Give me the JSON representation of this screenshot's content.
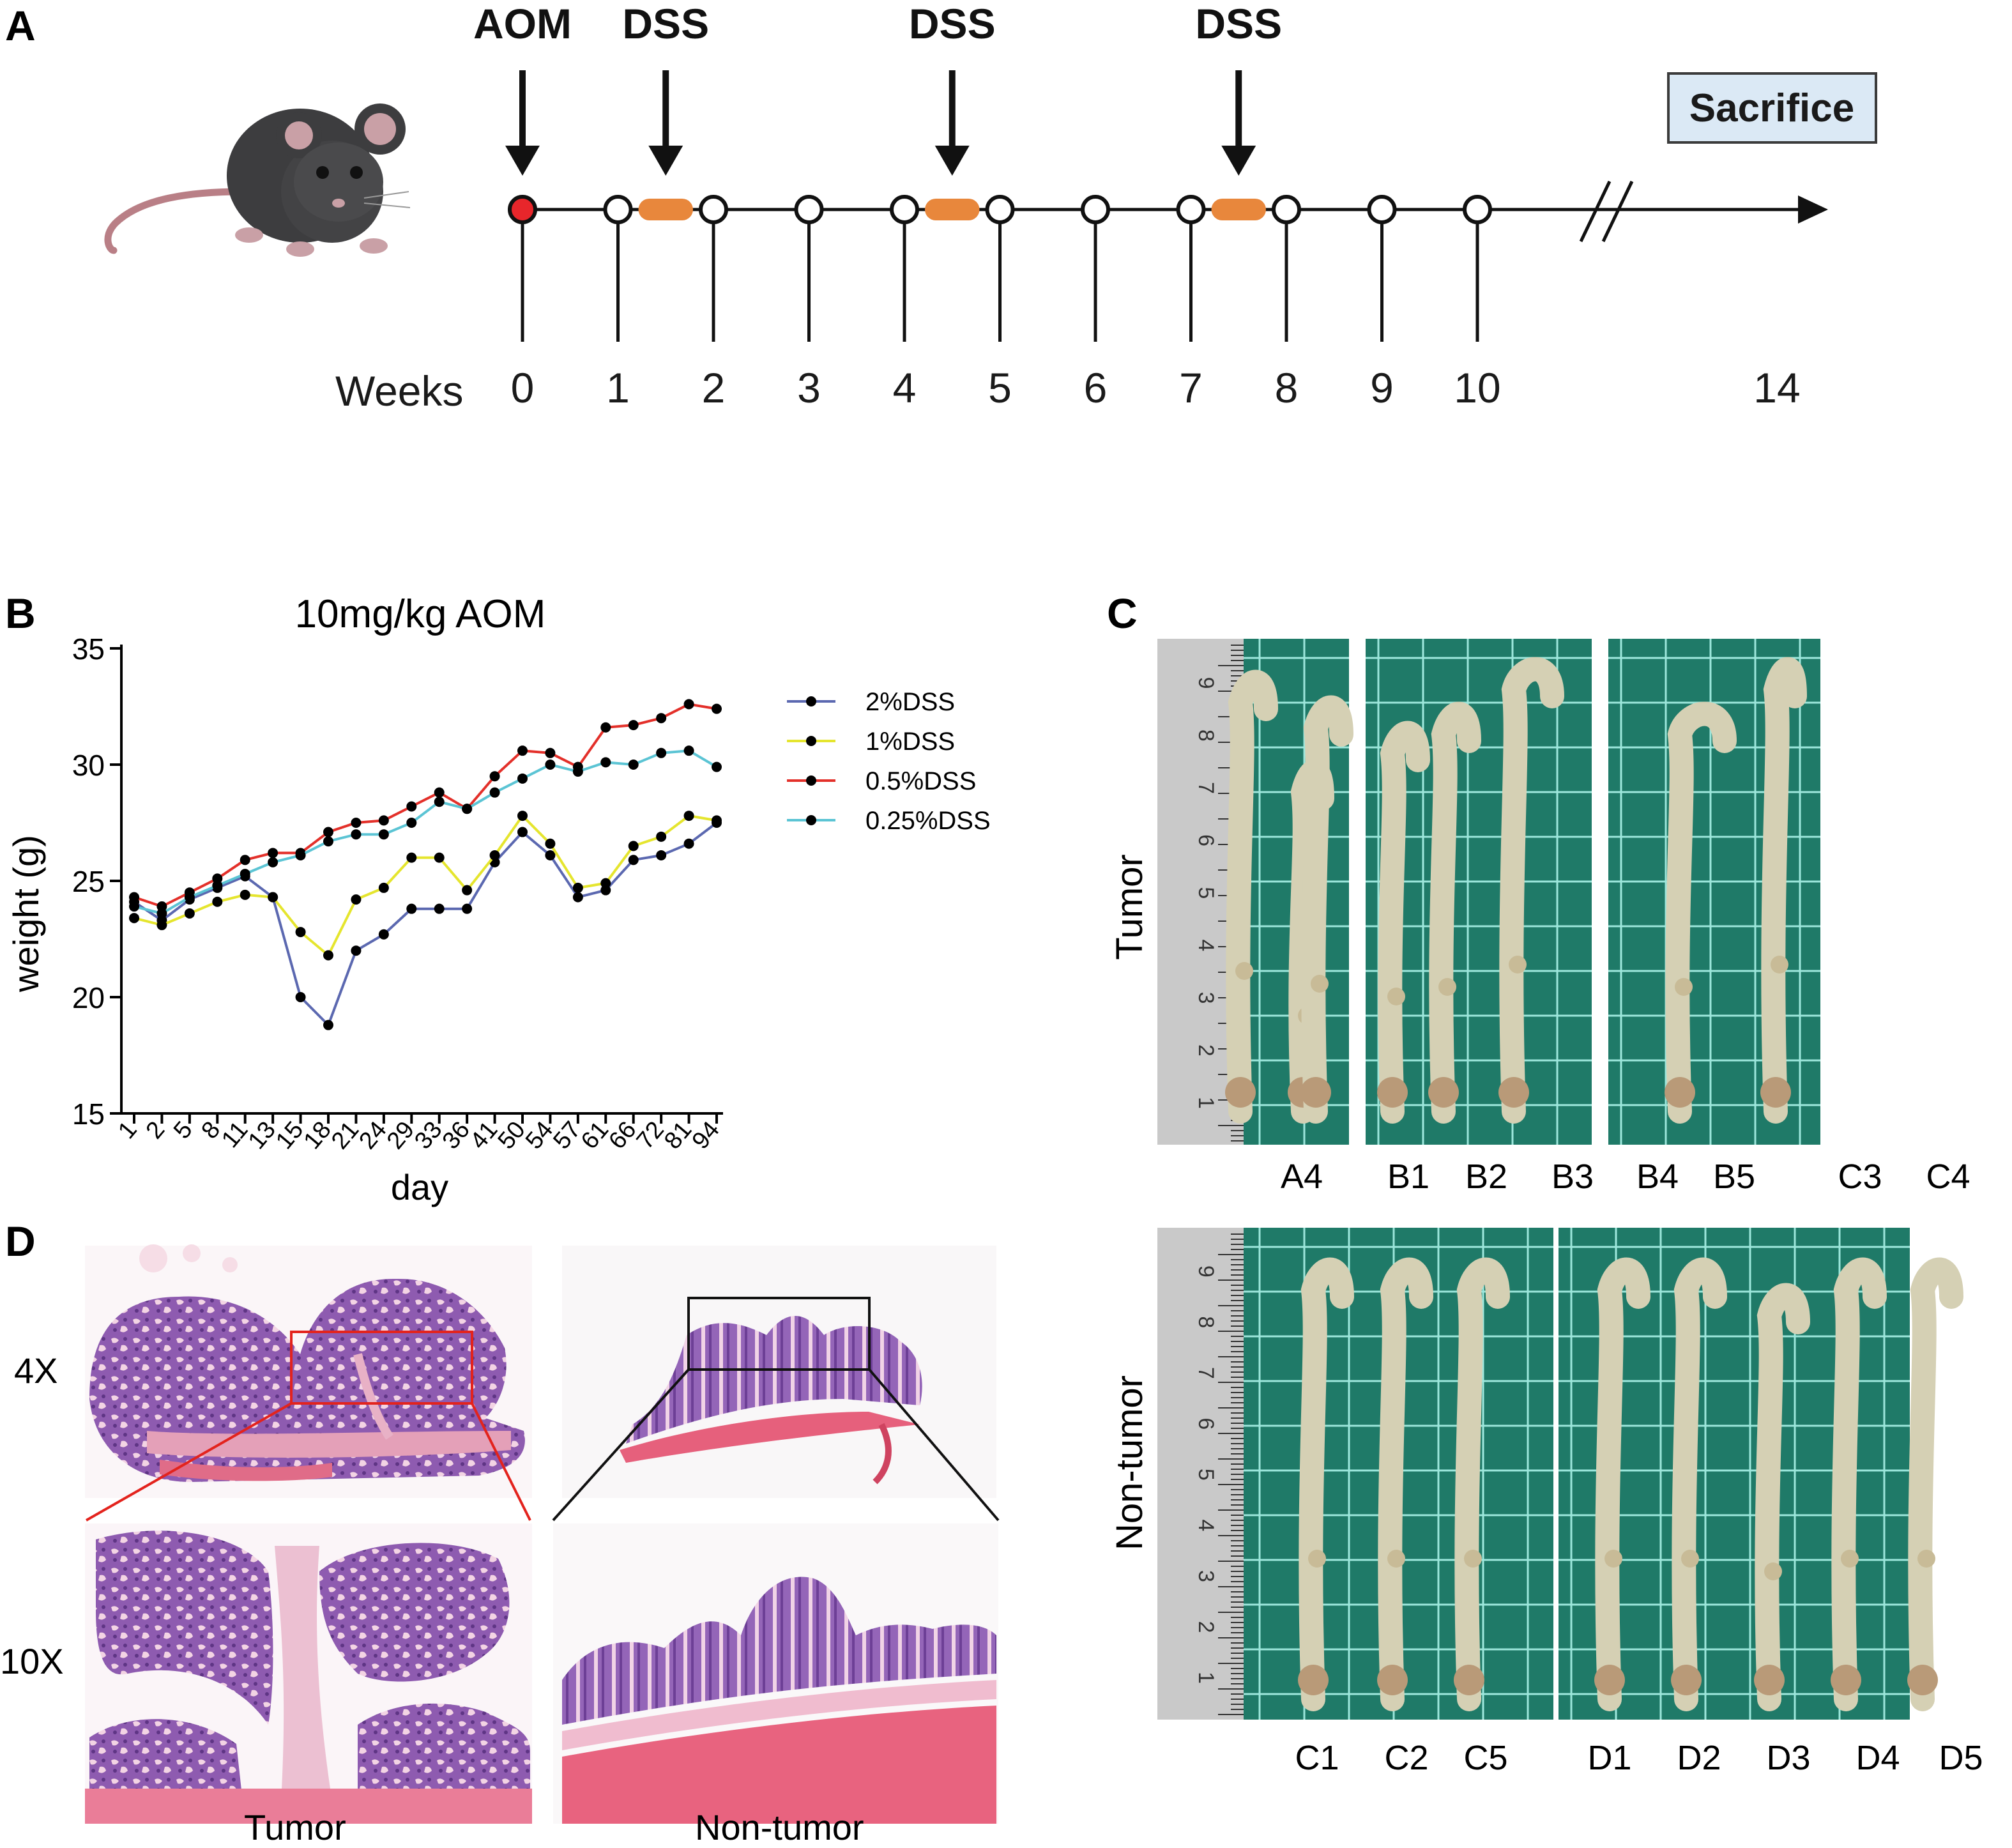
{
  "figure": {
    "panel_labels": {
      "a": "A",
      "b": "B",
      "c": "C",
      "d": "D"
    }
  },
  "panel_a": {
    "injections": [
      {
        "label": "AOM",
        "week": 0
      },
      {
        "label": "DSS",
        "week": 1.5
      },
      {
        "label": "DSS",
        "week": 4.5
      },
      {
        "label": "DSS",
        "week": 7.5
      }
    ],
    "dss_bars": [
      {
        "start": 1,
        "end": 2
      },
      {
        "start": 4,
        "end": 5
      },
      {
        "start": 7,
        "end": 8
      }
    ],
    "weeks_label": "Weeks",
    "week_ticks": [
      "0",
      "1",
      "2",
      "3",
      "4",
      "5",
      "6",
      "7",
      "8",
      "9",
      "10",
      "14"
    ],
    "sacrifice_label": "Sacrifice",
    "colors": {
      "aom_dot": "#e8262b",
      "dss_bar": "#e8873c",
      "sacrifice_bg": "#dbe9f5",
      "sacrifice_border": "#3b3b3b",
      "mouse": "#3d3d3f",
      "mouse_ear": "#c9a0a6"
    }
  },
  "chart_data": {
    "type": "line",
    "title": "10mg/kg AOM",
    "xlabel": "day",
    "ylabel": "weight (g)",
    "ylim": [
      15,
      35
    ],
    "yticks": [
      15,
      20,
      25,
      30,
      35
    ],
    "categories": [
      "1",
      "2",
      "5",
      "8",
      "11",
      "13",
      "15",
      "18",
      "21",
      "24",
      "29",
      "33",
      "36",
      "41",
      "50",
      "54",
      "57",
      "61",
      "66",
      "72",
      "81",
      "94"
    ],
    "legend_position": "top-right",
    "series": [
      {
        "name": "2%DSS",
        "color": "#5b68b0",
        "values": [
          24.1,
          23.3,
          24.2,
          24.7,
          25.2,
          24.3,
          20.0,
          18.8,
          22.0,
          22.7,
          23.8,
          23.8,
          23.8,
          25.8,
          27.1,
          26.1,
          24.3,
          24.6,
          25.9,
          26.1,
          26.6,
          27.5
        ]
      },
      {
        "name": "1%DSS",
        "color": "#e5e52e",
        "values": [
          23.4,
          23.1,
          23.6,
          24.1,
          24.4,
          24.3,
          22.8,
          21.8,
          24.2,
          24.7,
          26.0,
          26.0,
          24.6,
          26.1,
          27.8,
          26.6,
          24.7,
          24.9,
          26.5,
          26.9,
          27.8,
          27.6
        ]
      },
      {
        "name": "0.5%DSS",
        "color": "#e3302a",
        "values": [
          24.3,
          23.9,
          24.5,
          25.1,
          25.9,
          26.2,
          26.2,
          27.1,
          27.5,
          27.6,
          28.2,
          28.8,
          28.1,
          29.5,
          30.6,
          30.5,
          29.9,
          31.6,
          31.7,
          32.0,
          32.6,
          32.4
        ]
      },
      {
        "name": "0.25%DSS",
        "color": "#5bc4d4",
        "values": [
          23.9,
          23.6,
          24.3,
          24.8,
          25.3,
          25.8,
          26.1,
          26.7,
          27.0,
          27.0,
          27.5,
          28.4,
          28.1,
          28.8,
          29.4,
          30.0,
          29.7,
          30.1,
          30.0,
          30.5,
          30.6,
          29.9
        ]
      }
    ]
  },
  "panel_c": {
    "tumor_label": "Tumor",
    "nontumor_label": "Non-tumor",
    "tumor_samples": [
      "A4",
      "B1",
      "B2",
      "B3",
      "B4",
      "B5",
      "C3",
      "C4"
    ],
    "nontumor_samples": [
      "C1",
      "C2",
      "C5",
      "D1",
      "D2",
      "D3",
      "D4",
      "D5"
    ],
    "ruler_numbers": [
      "1",
      "2",
      "3",
      "4",
      "5",
      "6",
      "7",
      "8",
      "9"
    ],
    "colors": {
      "board": "#1f7a68",
      "grid": "#9de7dc",
      "ruler": "#c9c9c9",
      "tissue": "#d5d0b4",
      "tissue_dark": "#b99a78"
    }
  },
  "panel_d": {
    "mag_4x": "4X",
    "mag_10x": "10X",
    "tumor_label": "Tumor",
    "nontumor_label": "Non-tumor",
    "colors": {
      "tissue": "#8a5aa8",
      "stroma": "#e7a6bd",
      "muscle": "#e0607a",
      "tumor_box": "#e3231d",
      "nontumor_box": "#111111"
    }
  }
}
